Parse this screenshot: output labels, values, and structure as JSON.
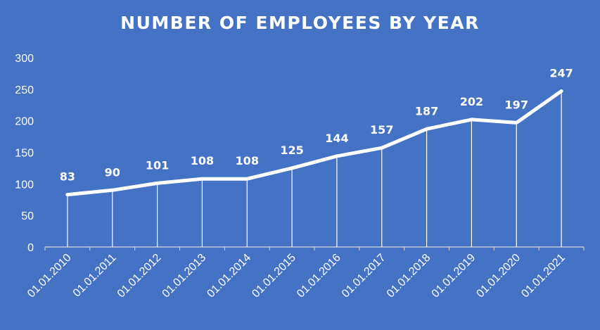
{
  "chart_data": {
    "type": "line",
    "title": "NUMBER OF EMPLOYEES BY YEAR",
    "xlabel": "",
    "ylabel": "",
    "categories": [
      "01.01.2010",
      "01.01.2011",
      "01.01.2012",
      "01.01.2013",
      "01.01.2014",
      "01.01.2015",
      "01.01.2016",
      "01.01.2017",
      "01.01.2018",
      "01.01.2019",
      "01.01.2020",
      "01.01.2021"
    ],
    "series": [
      {
        "values": [
          83,
          90,
          101,
          108,
          108,
          125,
          144,
          157,
          187,
          202,
          197,
          247
        ]
      }
    ],
    "ylim": [
      0,
      300
    ],
    "yticks": [
      0,
      50,
      100,
      150,
      200,
      250,
      300
    ],
    "data_labels": true,
    "drop_lines": true,
    "grid": false,
    "legend": "none",
    "colors": {
      "background": "#4472C4",
      "line": "#FFFFFF",
      "text": "#FFFFFF"
    }
  }
}
